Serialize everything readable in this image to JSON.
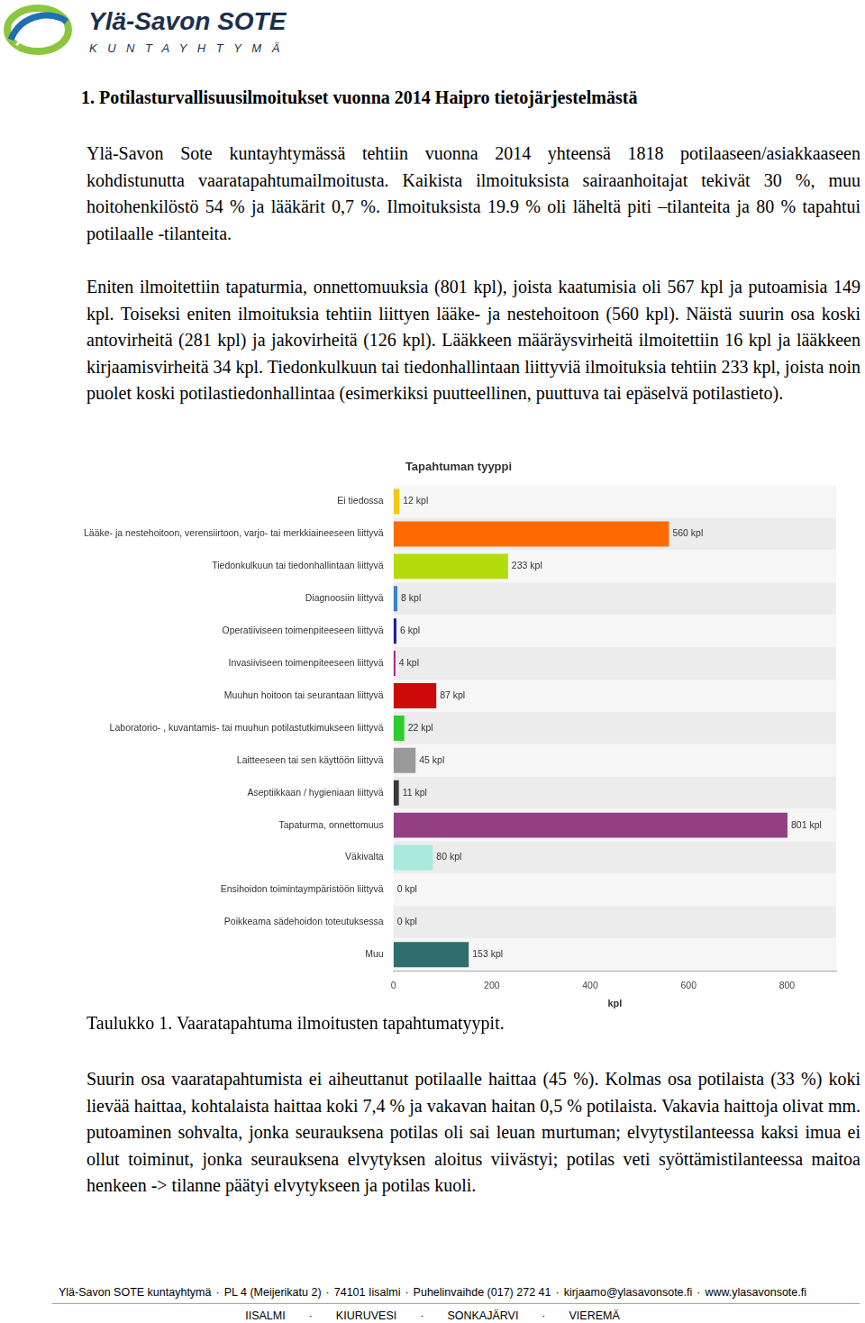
{
  "header": {
    "name": "Ylä-Savon SOTE",
    "subtitle": "KUNTAYHTYMÄ"
  },
  "heading": "1. Potilasturvallisuusilmoitukset vuonna 2014 Haipro tietojärjestelmästä",
  "paragraphs": [
    "Ylä-Savon Sote kuntayhtymässä tehtiin vuonna 2014 yhteensä 1818 potilaaseen/asiakkaaseen kohdistunutta vaaratapahtumailmoitusta. Kaikista ilmoituksista sairaanhoitajat tekivät 30 %, muu hoitohenkilöstö 54 % ja lääkärit 0,7 %. Ilmoituksista 19.9 % oli läheltä piti –tilanteita ja 80 % tapahtui potilaalle -tilanteita.",
    "Eniten ilmoitettiin tapaturmia, onnettomuuksia (801 kpl), joista kaatumisia oli 567 kpl ja putoamisia 149 kpl. Toiseksi eniten ilmoituksia tehtiin liittyen lääke- ja nestehoitoon (560 kpl). Näistä suurin osa koski antovirheitä (281 kpl) ja jakovirheitä (126 kpl). Lääkkeen määräysvirheitä ilmoitettiin 16 kpl ja lääkkeen kirjaamisvirheitä 34 kpl. Tiedonkulkuun tai tiedonhallintaan liittyviä ilmoituksia tehtiin 233 kpl, joista noin puolet koski potilastiedonhallintaa (esimerkiksi puutteellinen, puuttuva tai epäselvä potilastieto)."
  ],
  "chart_data": {
    "type": "bar",
    "orientation": "horizontal",
    "title": "Tapahtuman tyyppi",
    "x_label": "kpl",
    "categories": [
      "Ei tiedossa",
      "Lääke- ja nestehoitoon, verensiirtoon, varjo- tai merkkiaineeseen liittyvä",
      "Tiedonkulkuun tai tiedonhallintaan liittyvä",
      "Diagnoosiin liittyvä",
      "Operatiiviseen toimenpiteeseen liittyvä",
      "Invasiiviseen toimenpiteeseen liittyvä",
      "Muuhun hoitoon tai seurantaan liittyvä",
      "Laboratorio- , kuvantamis- tai muuhun potilastutkimukseen liittyvä",
      "Laitteeseen tai sen käyttöön liittyvä",
      "Aseptiikkaan / hygieniaan liittyvä",
      "Tapaturma, onnettomuus",
      "Väkivalta",
      "Ensihoidon toimintaympäristöön liittyvä",
      "Poikkeama sädehoidon toteutuksessa",
      "Muu"
    ],
    "values": [
      12,
      560,
      233,
      8,
      6,
      4,
      87,
      22,
      45,
      11,
      801,
      80,
      0,
      0,
      153
    ],
    "value_labels": [
      "12 kpl",
      "560 kpl",
      "233 kpl",
      "8 kpl",
      "6 kpl",
      "4 kpl",
      "87 kpl",
      "22 kpl",
      "45 kpl",
      "11 kpl",
      "801 kpl",
      "80 kpl",
      "0 kpl",
      "0 kpl",
      "153 kpl"
    ],
    "colors": [
      "#f2c811",
      "#ff6a00",
      "#b4dc0a",
      "#3b82cf",
      "#1d1aa8",
      "#a3247f",
      "#cc0a0a",
      "#2ecc2e",
      "#9a9a9a",
      "#3a3a3a",
      "#943f84",
      "#a9e8dc",
      "#bdbdbd",
      "#bdbdbd",
      "#2f6e6e"
    ],
    "xlim": [
      0,
      900
    ],
    "xticks": [
      0,
      200,
      400,
      600,
      800
    ],
    "data_labels": true,
    "grid": false
  },
  "caption": "Taulukko 1. Vaaratapahtuma ilmoitusten tapahtumatyypit.",
  "paragraphs_after": [
    "Suurin osa vaaratapahtumista ei aiheuttanut potilaalle haittaa (45 %). Kolmas osa potilaista (33 %) koki lievää haittaa, kohtalaista haittaa koki 7,4 % ja vakavan haitan 0,5 % potilaista. Vakavia haittoja olivat mm. putoaminen sohvalta, jonka seurauksena potilas oli sai leuan murtuman; elvytystilanteessa kaksi imua ei ollut toiminut, jonka seurauksena elvytyksen aloitus viivästyi; potilas veti syöttämistilanteessa maitoa henkeen -> tilanne päätyi elvytykseen ja potilas kuoli."
  ],
  "footer": {
    "separator": "·",
    "line1": [
      "Ylä-Savon SOTE kuntayhtymä",
      "PL 4 (Meijerikatu 2)",
      "74101 Iisalmi",
      "Puhelinvaihde (017) 272 41",
      "kirjaamo@ylasavonsote.fi",
      "www.ylasavonsote.fi"
    ],
    "line2": [
      "IISALMI",
      "KIURUVESI",
      "SONKAJÄRVI",
      "VIEREMÄ"
    ]
  }
}
